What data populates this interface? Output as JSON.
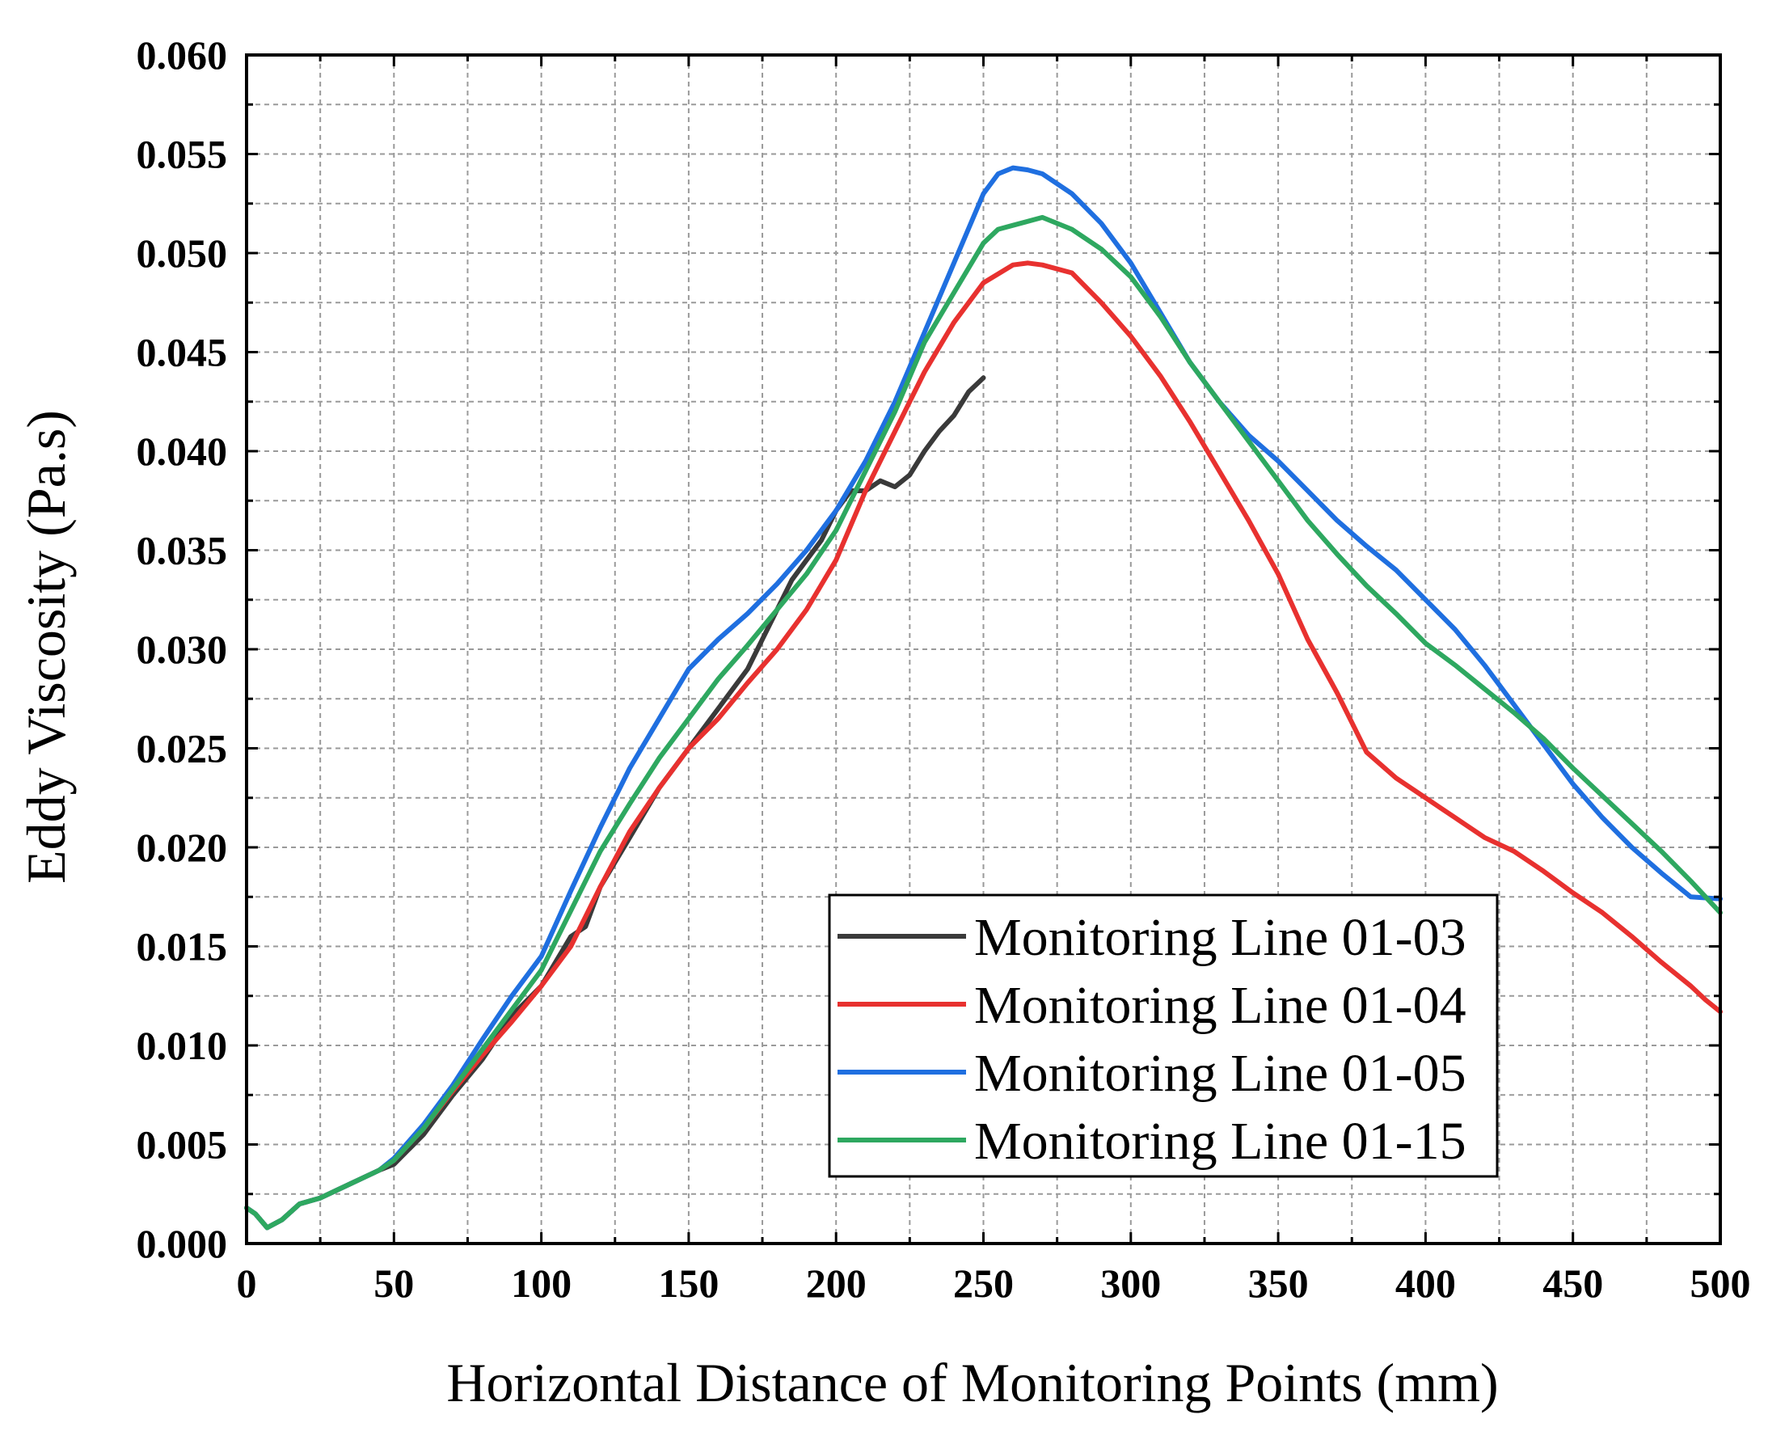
{
  "chart_data": {
    "type": "line",
    "title": "",
    "xlabel": "Horizontal Distance of Monitoring Points (mm)",
    "ylabel": "Eddy Viscosity (Pa.s)",
    "xlim": [
      0,
      500
    ],
    "ylim": [
      0,
      0.06
    ],
    "xticks": [
      "0",
      "50",
      "100",
      "150",
      "200",
      "250",
      "300",
      "350",
      "400",
      "450",
      "500"
    ],
    "yticks": [
      "0.000",
      "0.005",
      "0.010",
      "0.015",
      "0.020",
      "0.025",
      "0.030",
      "0.035",
      "0.040",
      "0.045",
      "0.050",
      "0.055",
      "0.060"
    ],
    "grid": true,
    "legend_position": "lower-right",
    "series": [
      {
        "name": "Monitoring Line 01-03",
        "color": "#3a3a3a",
        "x": [
          0,
          3,
          7,
          12,
          18,
          25,
          35,
          45,
          50,
          60,
          70,
          80,
          90,
          100,
          110,
          115,
          120,
          130,
          140,
          150,
          160,
          170,
          175,
          180,
          185,
          190,
          195,
          200,
          205,
          210,
          215,
          220,
          225,
          230,
          235,
          240,
          245,
          250
        ],
        "y": [
          0.0018,
          0.0015,
          0.0008,
          0.0012,
          0.002,
          0.0023,
          0.003,
          0.0037,
          0.004,
          0.0055,
          0.0075,
          0.0093,
          0.0115,
          0.013,
          0.0155,
          0.016,
          0.018,
          0.0205,
          0.023,
          0.025,
          0.027,
          0.029,
          0.0305,
          0.032,
          0.0335,
          0.0345,
          0.0355,
          0.037,
          0.038,
          0.038,
          0.0385,
          0.0382,
          0.0388,
          0.04,
          0.041,
          0.0418,
          0.043,
          0.0437
        ]
      },
      {
        "name": "Monitoring Line 01-04",
        "color": "#e8312f",
        "x": [
          0,
          3,
          7,
          12,
          18,
          25,
          35,
          45,
          50,
          60,
          70,
          80,
          90,
          100,
          110,
          120,
          130,
          140,
          150,
          160,
          170,
          180,
          190,
          200,
          210,
          220,
          230,
          240,
          250,
          260,
          265,
          270,
          280,
          290,
          300,
          310,
          320,
          330,
          340,
          350,
          360,
          370,
          380,
          390,
          400,
          410,
          420,
          430,
          440,
          450,
          460,
          470,
          480,
          490,
          495,
          500
        ],
        "y": [
          0.0018,
          0.0015,
          0.0008,
          0.0012,
          0.002,
          0.0023,
          0.003,
          0.0037,
          0.0042,
          0.0058,
          0.0077,
          0.0095,
          0.0112,
          0.013,
          0.015,
          0.018,
          0.0208,
          0.023,
          0.025,
          0.0265,
          0.0283,
          0.03,
          0.032,
          0.0345,
          0.038,
          0.041,
          0.044,
          0.0465,
          0.0485,
          0.0494,
          0.0495,
          0.0494,
          0.049,
          0.0475,
          0.0458,
          0.0438,
          0.0415,
          0.039,
          0.0365,
          0.0338,
          0.0305,
          0.0278,
          0.0248,
          0.0235,
          0.0225,
          0.0215,
          0.0205,
          0.0198,
          0.0188,
          0.0177,
          0.0167,
          0.0155,
          0.0142,
          0.013,
          0.0123,
          0.0117
        ]
      },
      {
        "name": "Monitoring Line 01-05",
        "color": "#1f6fe0",
        "x": [
          0,
          3,
          7,
          12,
          18,
          25,
          35,
          45,
          50,
          60,
          70,
          80,
          90,
          100,
          110,
          120,
          130,
          140,
          150,
          160,
          170,
          180,
          190,
          200,
          210,
          220,
          230,
          240,
          250,
          255,
          260,
          265,
          270,
          280,
          290,
          300,
          310,
          320,
          330,
          340,
          350,
          360,
          370,
          380,
          390,
          400,
          410,
          420,
          430,
          440,
          450,
          460,
          470,
          480,
          490,
          500
        ],
        "y": [
          0.0018,
          0.0015,
          0.0008,
          0.0012,
          0.002,
          0.0023,
          0.003,
          0.0037,
          0.0043,
          0.006,
          0.008,
          0.0103,
          0.0125,
          0.0145,
          0.0178,
          0.021,
          0.024,
          0.0265,
          0.029,
          0.0305,
          0.0318,
          0.0333,
          0.035,
          0.037,
          0.0395,
          0.0425,
          0.046,
          0.0495,
          0.053,
          0.054,
          0.0543,
          0.0542,
          0.054,
          0.053,
          0.0515,
          0.0495,
          0.047,
          0.0445,
          0.0425,
          0.0408,
          0.0395,
          0.038,
          0.0365,
          0.0352,
          0.034,
          0.0325,
          0.031,
          0.0292,
          0.0272,
          0.0252,
          0.0232,
          0.0215,
          0.02,
          0.0187,
          0.0175,
          0.0174
        ]
      },
      {
        "name": "Monitoring Line 01-15",
        "color": "#2ea860",
        "x": [
          0,
          3,
          7,
          12,
          18,
          25,
          35,
          45,
          50,
          60,
          70,
          80,
          90,
          100,
          110,
          120,
          130,
          140,
          150,
          160,
          170,
          180,
          190,
          200,
          210,
          220,
          230,
          240,
          250,
          255,
          260,
          270,
          280,
          290,
          300,
          310,
          320,
          330,
          340,
          350,
          360,
          370,
          380,
          390,
          400,
          410,
          420,
          430,
          440,
          450,
          460,
          470,
          480,
          490,
          500
        ],
        "y": [
          0.0018,
          0.0015,
          0.0008,
          0.0012,
          0.002,
          0.0023,
          0.003,
          0.0037,
          0.0042,
          0.0058,
          0.0078,
          0.0098,
          0.0118,
          0.0138,
          0.0168,
          0.0198,
          0.0222,
          0.0245,
          0.0265,
          0.0285,
          0.0302,
          0.032,
          0.0338,
          0.036,
          0.039,
          0.042,
          0.0455,
          0.048,
          0.0505,
          0.0512,
          0.0514,
          0.0518,
          0.0512,
          0.0502,
          0.0488,
          0.0468,
          0.0445,
          0.0425,
          0.0405,
          0.0385,
          0.0365,
          0.0348,
          0.0332,
          0.0318,
          0.0303,
          0.0292,
          0.028,
          0.0268,
          0.0255,
          0.024,
          0.0226,
          0.0212,
          0.0198,
          0.0183,
          0.0167
        ]
      }
    ]
  }
}
